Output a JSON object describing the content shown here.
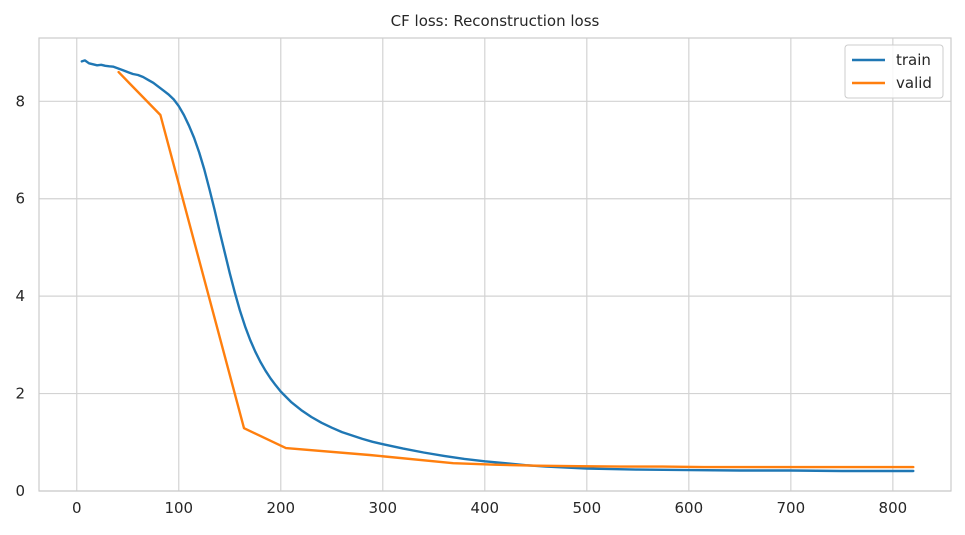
{
  "chart_data": {
    "type": "line",
    "title": "CF loss: Reconstruction loss",
    "xlabel": "",
    "ylabel": "",
    "xlim": [
      -37,
      857
    ],
    "ylim": [
      0,
      9.3
    ],
    "xticks": [
      0,
      100,
      200,
      300,
      400,
      500,
      600,
      700,
      800
    ],
    "yticks": [
      0,
      2,
      4,
      6,
      8
    ],
    "grid": true,
    "legend_position": "top-right",
    "series": [
      {
        "name": "train",
        "color": "#1f77b4",
        "x": [
          5,
          8,
          12,
          16,
          20,
          24,
          28,
          32,
          36,
          40,
          45,
          50,
          55,
          60,
          65,
          70,
          75,
          80,
          85,
          90,
          95,
          100,
          105,
          110,
          115,
          120,
          125,
          130,
          135,
          140,
          145,
          150,
          155,
          160,
          165,
          170,
          175,
          180,
          185,
          190,
          195,
          200,
          210,
          220,
          230,
          240,
          250,
          260,
          270,
          280,
          290,
          300,
          320,
          340,
          360,
          380,
          400,
          420,
          440,
          460,
          480,
          500,
          550,
          600,
          650,
          700,
          750,
          800,
          820
        ],
        "y": [
          8.82,
          8.84,
          8.78,
          8.76,
          8.74,
          8.75,
          8.73,
          8.72,
          8.71,
          8.68,
          8.64,
          8.6,
          8.56,
          8.54,
          8.5,
          8.44,
          8.38,
          8.3,
          8.22,
          8.14,
          8.04,
          7.9,
          7.72,
          7.5,
          7.25,
          6.95,
          6.6,
          6.2,
          5.78,
          5.33,
          4.9,
          4.47,
          4.07,
          3.7,
          3.38,
          3.1,
          2.86,
          2.65,
          2.47,
          2.31,
          2.17,
          2.04,
          1.83,
          1.66,
          1.52,
          1.4,
          1.3,
          1.21,
          1.14,
          1.07,
          1.01,
          0.96,
          0.87,
          0.79,
          0.72,
          0.66,
          0.61,
          0.57,
          0.53,
          0.5,
          0.48,
          0.46,
          0.44,
          0.43,
          0.42,
          0.42,
          0.41,
          0.41,
          0.41
        ]
      },
      {
        "name": "valid",
        "color": "#ff7f0e",
        "x": [
          41,
          82,
          164,
          205,
          287,
          369,
          410,
          451,
          492,
          533,
          574,
          615,
          656,
          697,
          738,
          779,
          820
        ],
        "y": [
          8.6,
          7.72,
          1.29,
          0.88,
          0.74,
          0.57,
          0.54,
          0.52,
          0.51,
          0.5,
          0.5,
          0.49,
          0.49,
          0.49,
          0.49,
          0.49,
          0.49
        ]
      }
    ]
  }
}
